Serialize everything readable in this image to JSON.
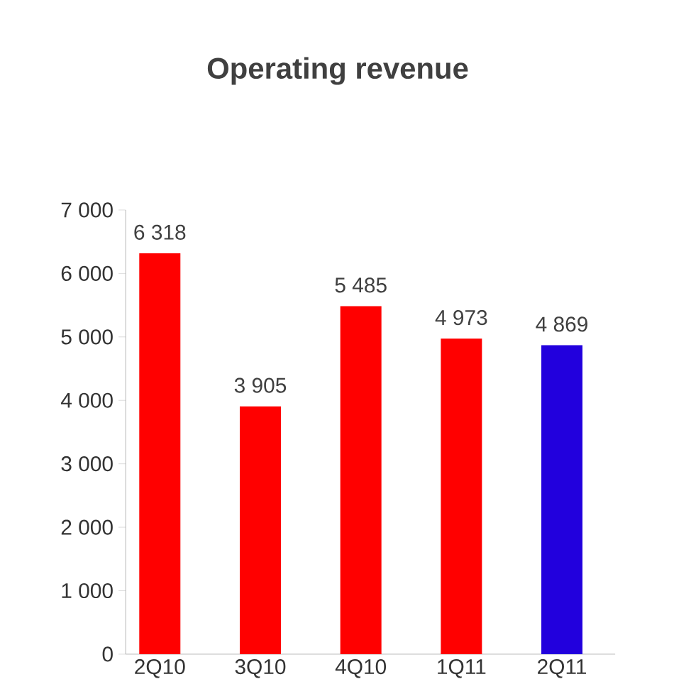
{
  "chart_data": {
    "type": "bar",
    "title": "Operating revenue",
    "categories": [
      "2Q10",
      "3Q10",
      "4Q10",
      "1Q11",
      "2Q11"
    ],
    "values": [
      6318,
      3905,
      5485,
      4973,
      4869
    ],
    "colors": [
      "#ff0000",
      "#ff0000",
      "#ff0000",
      "#ff0000",
      "#2200dd"
    ],
    "value_labels": [
      "6 318",
      "3 905",
      "5 485",
      "4 973",
      "4 869"
    ],
    "ylim": [
      0,
      7000
    ],
    "yticks": [
      0,
      {
        "value": 1000,
        "label": "1 000"
      },
      {
        "value": 2000,
        "label": "2 000"
      },
      {
        "value": 3000,
        "label": "3 000"
      },
      {
        "value": 4000,
        "label": "4 000"
      },
      {
        "value": 5000,
        "label": "5 000"
      },
      {
        "value": 6000,
        "label": "6 000"
      },
      {
        "value": 7000,
        "label": "7 000"
      }
    ],
    "grid": false
  }
}
